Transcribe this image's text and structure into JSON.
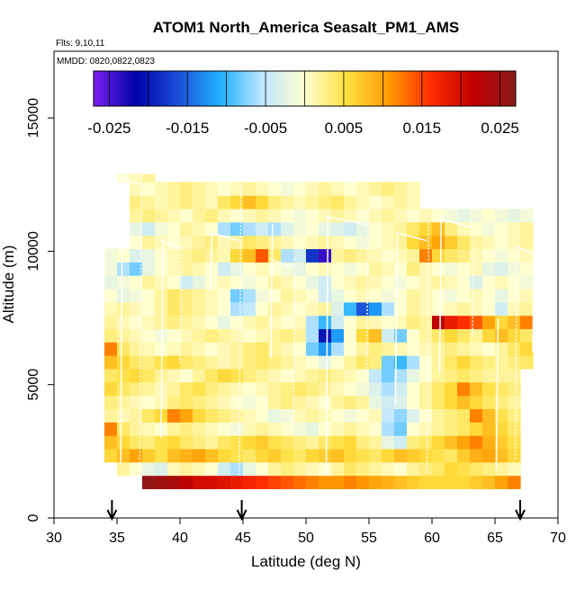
{
  "chart_data": {
    "type": "heatmap",
    "title": "ATOM1 North_America Seasalt_PM1_AMS",
    "flights_label": "Flts: 9,10,11",
    "dates_label": "MMDD: 0820,0822,0823",
    "xlabel": "Latitude (deg N)",
    "ylabel": "Altitude (m)",
    "xlim": [
      30,
      70
    ],
    "ylim": [
      0,
      17500
    ],
    "x_ticks": [
      "30",
      "35",
      "40",
      "45",
      "50",
      "55",
      "60",
      "65",
      "70"
    ],
    "y_ticks": [
      "0",
      "5000",
      "10000",
      "15000"
    ],
    "colorbar": {
      "range": [
        -0.027,
        0.027
      ],
      "tick_labels": [
        "-0.025",
        "-0.015",
        "-0.005",
        "0.005",
        "0.015",
        "0.025"
      ],
      "tick_values": [
        -0.025,
        -0.015,
        -0.005,
        0.005,
        0.015,
        0.025
      ],
      "stops": [
        "#7b1ff0",
        "#0000a8",
        "#1a4fd8",
        "#1fb0ff",
        "#bfe6ff",
        "#ffffd0",
        "#ffe040",
        "#ff9a00",
        "#ff2a00",
        "#c00000",
        "#8b1a1a"
      ]
    },
    "arrow_latitudes": [
      34.6,
      44.9,
      67.0
    ],
    "cells": [
      {
        "lat": [
          37,
          67
        ],
        "alt": [
          1100,
          1600
        ],
        "values": [
          0.026,
          0.025,
          0.024,
          0.022,
          0.02,
          0.02,
          0.019,
          0.018,
          0.017,
          0.016,
          0.015,
          0.014,
          0.013,
          0.012,
          0.011,
          0.011,
          0.012,
          0.011,
          0.01,
          0.009,
          0.008,
          0.007,
          0.006,
          0.006,
          0.006,
          0.006,
          0.007,
          0.008,
          0.01,
          0.012
        ]
      },
      {
        "lat": [
          35,
          67
        ],
        "alt": [
          1600,
          2100
        ],
        "values": [
          0.002,
          0.0,
          -0.002,
          -0.003,
          0.001,
          0.002,
          0.001,
          0.0,
          -0.004,
          -0.006,
          -0.002,
          0.0,
          0.002,
          0.003,
          0.002,
          0.001,
          0.0,
          0.002,
          0.004,
          0.003,
          0.002,
          0.001,
          0.0,
          0.002,
          0.003,
          0.004,
          0.006,
          0.005,
          0.004,
          0.003,
          0.002,
          0.001
        ]
      },
      {
        "lat": [
          34,
          67
        ],
        "alt": [
          2100,
          2600
        ],
        "values": [
          0.006,
          0.008,
          0.01,
          0.007,
          0.005,
          0.008,
          0.009,
          0.01,
          0.008,
          0.006,
          0.005,
          0.004,
          0.006,
          0.007,
          0.005,
          0.004,
          0.006,
          0.007,
          0.008,
          0.006,
          0.005,
          0.004,
          0.006,
          0.008,
          0.007,
          0.006,
          0.005,
          0.004,
          0.007,
          0.009,
          0.01,
          0.008,
          0.006
        ]
      },
      {
        "lat": [
          34,
          67
        ],
        "alt": [
          2600,
          3100
        ],
        "values": [
          0.008,
          0.006,
          0.004,
          0.003,
          0.005,
          0.006,
          0.004,
          0.003,
          0.002,
          0.004,
          0.005,
          0.006,
          0.007,
          0.005,
          0.004,
          0.003,
          0.002,
          0.004,
          0.005,
          0.006,
          0.003,
          0.002,
          -0.002,
          -0.004,
          0.003,
          0.004,
          0.006,
          0.008,
          0.01,
          0.012,
          0.009,
          0.007,
          0.005
        ]
      },
      {
        "lat": [
          34,
          67
        ],
        "alt": [
          3100,
          3600
        ],
        "values": [
          0.012,
          0.004,
          0.002,
          0.001,
          0.0,
          0.002,
          0.003,
          0.002,
          0.001,
          0.0,
          -0.001,
          0.001,
          0.002,
          0.001,
          0.0,
          -0.001,
          -0.002,
          0.0,
          0.001,
          0.002,
          0.001,
          0.0,
          -0.006,
          -0.008,
          0.0,
          0.001,
          0.002,
          0.003,
          0.004,
          0.006,
          0.008,
          0.006,
          0.004
        ]
      },
      {
        "lat": [
          34,
          67
        ],
        "alt": [
          3600,
          4100
        ],
        "values": [
          0.002,
          0.001,
          0.002,
          0.004,
          0.006,
          0.012,
          0.01,
          0.006,
          0.004,
          0.003,
          0.002,
          0.001,
          0.0,
          -0.002,
          -0.001,
          0.001,
          0.002,
          0.001,
          0.0,
          -0.001,
          0.0,
          0.001,
          -0.005,
          -0.007,
          -0.003,
          0.0,
          0.002,
          0.003,
          0.004,
          0.012,
          0.008,
          0.005,
          0.003
        ]
      },
      {
        "lat": [
          34,
          67
        ],
        "alt": [
          4100,
          4600
        ],
        "values": [
          0.003,
          0.002,
          0.001,
          0.0,
          0.001,
          0.003,
          0.004,
          0.003,
          0.002,
          0.001,
          0.0,
          -0.001,
          0.0,
          0.002,
          0.003,
          0.002,
          0.001,
          0.0,
          0.002,
          0.003,
          0.002,
          -0.002,
          -0.004,
          -0.003,
          0.0,
          0.002,
          0.004,
          0.006,
          0.008,
          0.006,
          0.004,
          0.003,
          0.002
        ]
      },
      {
        "lat": [
          34,
          67
        ],
        "alt": [
          4600,
          5100
        ],
        "values": [
          0.006,
          0.004,
          0.003,
          0.002,
          0.001,
          0.002,
          0.004,
          0.005,
          0.003,
          0.002,
          0.001,
          0.0,
          0.001,
          0.002,
          0.003,
          0.004,
          0.003,
          0.002,
          0.001,
          0.0,
          -0.001,
          -0.003,
          -0.006,
          -0.004,
          0.0,
          0.002,
          0.004,
          0.006,
          0.012,
          0.008,
          0.005,
          0.004,
          0.003
        ]
      },
      {
        "lat": [
          34,
          67
        ],
        "alt": [
          5100,
          5600
        ],
        "values": [
          0.004,
          0.005,
          0.006,
          0.004,
          0.002,
          0.001,
          0.0,
          0.002,
          0.004,
          0.006,
          0.005,
          0.003,
          0.002,
          0.001,
          0.0,
          0.001,
          0.002,
          0.003,
          0.002,
          0.001,
          0.0,
          -0.005,
          -0.008,
          -0.006,
          -0.002,
          0.0,
          0.002,
          0.003,
          0.004,
          0.003,
          0.002,
          0.002,
          0.002
        ]
      },
      {
        "lat": [
          34,
          68
        ],
        "alt": [
          5600,
          6100
        ],
        "values": [
          0.008,
          0.006,
          0.004,
          0.003,
          0.005,
          0.006,
          0.004,
          0.003,
          0.002,
          0.001,
          0.002,
          0.003,
          0.004,
          0.003,
          0.002,
          0.001,
          0.0,
          -0.002,
          0.0,
          0.002,
          0.004,
          0.003,
          -0.008,
          -0.01,
          -0.006,
          0.0,
          0.002,
          0.004,
          0.006,
          0.004,
          0.003,
          0.002,
          0.003,
          0.004
        ]
      },
      {
        "lat": [
          34,
          68
        ],
        "alt": [
          6100,
          6600
        ],
        "values": [
          0.012,
          0.004,
          0.002,
          0.001,
          0.0,
          0.001,
          0.002,
          0.001,
          0.0,
          0.001,
          0.002,
          0.003,
          0.004,
          0.002,
          0.001,
          0.0,
          -0.008,
          -0.012,
          -0.006,
          0.0,
          0.002,
          0.003,
          0.002,
          0.001,
          0.0,
          0.001,
          0.002,
          0.003,
          0.002,
          0.001,
          0.0,
          0.002,
          0.004,
          0.006
        ]
      },
      {
        "lat": [
          34,
          68
        ],
        "alt": [
          6600,
          7100
        ],
        "values": [
          0.003,
          0.002,
          0.001,
          0.0,
          -0.001,
          0.0,
          0.001,
          0.002,
          0.003,
          0.002,
          0.001,
          0.0,
          0.001,
          0.002,
          0.003,
          0.002,
          -0.006,
          -0.02,
          -0.012,
          0.0,
          0.006,
          0.008,
          -0.004,
          -0.008,
          0.0,
          0.002,
          0.004,
          0.006,
          0.004,
          0.002,
          0.006,
          0.008,
          0.006,
          0.004
        ]
      },
      {
        "lat": [
          34,
          68
        ],
        "alt": [
          7100,
          7600
        ],
        "values": [
          0.002,
          0.001,
          0.0,
          0.001,
          0.002,
          0.003,
          0.002,
          0.001,
          0.0,
          -0.002,
          0.0,
          0.001,
          0.002,
          0.001,
          0.0,
          0.001,
          -0.006,
          -0.01,
          -0.004,
          0.0,
          0.002,
          0.001,
          0.0,
          0.001,
          0.003,
          0.002,
          0.022,
          0.018,
          0.016,
          0.014,
          0.01,
          0.006,
          0.008,
          0.012
        ]
      },
      {
        "lat": [
          34,
          68
        ],
        "alt": [
          7600,
          8100
        ],
        "values": [
          0.001,
          0.002,
          0.001,
          0.0,
          0.002,
          0.004,
          0.003,
          0.002,
          0.001,
          0.0,
          -0.006,
          -0.005,
          0.0,
          0.002,
          0.001,
          0.0,
          0.001,
          0.002,
          -0.003,
          -0.01,
          -0.016,
          -0.012,
          -0.006,
          0.0,
          0.002,
          0.001,
          0.0,
          0.001,
          0.002,
          0.001,
          0.0,
          -0.004,
          0.001,
          0.002
        ]
      },
      {
        "lat": [
          34,
          68
        ],
        "alt": [
          8100,
          8600
        ],
        "values": [
          0.0,
          -0.002,
          -0.001,
          0.0,
          0.002,
          0.004,
          0.003,
          0.002,
          0.001,
          0.0,
          -0.008,
          -0.006,
          -0.001,
          0.0,
          0.002,
          0.001,
          0.0,
          -0.004,
          -0.002,
          0.0,
          0.001,
          0.0,
          -0.001,
          0.0,
          0.002,
          0.001,
          0.0,
          -0.001,
          0.0,
          0.001,
          0.0,
          -0.002,
          0.0,
          0.001
        ]
      },
      {
        "lat": [
          34,
          68
        ],
        "alt": [
          8600,
          9100
        ],
        "values": [
          -0.002,
          -0.001,
          0.0,
          0.002,
          0.001,
          0.0,
          -0.004,
          -0.002,
          0.0,
          0.001,
          0.0,
          -0.001,
          0.0,
          0.002,
          0.001,
          0.0,
          -0.002,
          -0.004,
          0.0,
          0.001,
          0.002,
          0.001,
          0.0,
          -0.001,
          0.0,
          0.001,
          0.002,
          0.001,
          0.0,
          -0.003,
          0.0,
          0.001,
          0.0,
          -0.001
        ]
      },
      {
        "lat": [
          34,
          68
        ],
        "alt": [
          9100,
          9600
        ],
        "values": [
          -0.001,
          -0.006,
          -0.008,
          -0.002,
          0.0,
          0.001,
          0.002,
          0.001,
          0.0,
          -0.004,
          -0.002,
          0.0,
          0.001,
          0.0,
          -0.001,
          -0.002,
          0.0,
          0.001,
          0.0,
          -0.001,
          0.0,
          0.002,
          0.001,
          0.0,
          0.003,
          0.001,
          0.0,
          -0.001,
          0.0,
          0.001,
          -0.002,
          -0.003,
          -0.001,
          0.0
        ]
      },
      {
        "lat": [
          34,
          68
        ],
        "alt": [
          9600,
          10100
        ],
        "values": [
          -0.001,
          0.0,
          -0.003,
          -0.002,
          0.0,
          0.001,
          0.002,
          0.003,
          0.002,
          0.001,
          0.006,
          0.008,
          0.014,
          0.004,
          -0.006,
          -0.004,
          -0.018,
          -0.024,
          0.002,
          0.003,
          0.002,
          0.001,
          0.0,
          0.001,
          0.002,
          0.012,
          0.006,
          0.004,
          0.003,
          0.001,
          0.0,
          -0.001,
          0.0,
          0.001
        ]
      },
      {
        "lat": [
          36,
          68
        ],
        "alt": [
          10100,
          10600
        ],
        "values": [
          0.0,
          0.002,
          0.001,
          0.0,
          0.001,
          0.002,
          0.003,
          0.001,
          0.002,
          0.004,
          0.003,
          0.002,
          0.001,
          0.0,
          0.001,
          0.002,
          0.001,
          0.0,
          -0.001,
          0.0,
          0.001,
          0.002,
          0.006,
          0.008,
          0.01,
          0.007,
          0.004,
          0.002,
          0.001,
          0.0,
          0.001,
          0.002
        ]
      },
      {
        "lat": [
          36,
          68
        ],
        "alt": [
          10600,
          11100
        ],
        "values": [
          -0.002,
          -0.004,
          -0.001,
          0.0,
          0.002,
          0.001,
          0.0,
          -0.006,
          -0.008,
          -0.006,
          -0.004,
          -0.006,
          -0.003,
          -0.001,
          0.0,
          -0.002,
          -0.003,
          -0.004,
          -0.002,
          0.0,
          0.001,
          0.002,
          0.004,
          0.006,
          0.008,
          0.003,
          0.001,
          0.0,
          -0.001,
          0.0,
          0.001,
          0.002
        ]
      },
      {
        "lat": [
          36,
          68
        ],
        "alt": [
          11100,
          11600
        ],
        "values": [
          0.002,
          0.003,
          0.002,
          0.001,
          0.0,
          0.002,
          0.003,
          0.001,
          0.0,
          0.001,
          0.002,
          0.001,
          0.0,
          -0.001,
          0.0,
          0.001,
          0.002,
          0.001,
          0.0,
          0.001,
          0.002,
          0.001,
          0.0,
          0.001,
          0.0,
          -0.001,
          -0.002,
          -0.001,
          0.0,
          -0.001,
          -0.002,
          -0.001
        ]
      },
      {
        "lat": [
          36,
          59
        ],
        "alt": [
          11600,
          12100
        ],
        "values": [
          0.003,
          0.002,
          0.001,
          0.002,
          0.003,
          0.002,
          0.001,
          0.004,
          0.006,
          0.008,
          0.006,
          0.003,
          0.002,
          0.001,
          0.002,
          0.003,
          0.004,
          0.002,
          0.001,
          0.0,
          0.001,
          0.002,
          0.001
        ]
      },
      {
        "lat": [
          36,
          59
        ],
        "alt": [
          12100,
          12600
        ],
        "values": [
          0.001,
          0.0,
          0.001,
          0.002,
          0.003,
          0.002,
          0.001,
          0.0,
          0.001,
          0.002,
          0.001,
          0.0,
          -0.001,
          0.0,
          0.001,
          0.002,
          0.001,
          0.0,
          0.001,
          0.002,
          0.003,
          0.002,
          0.001
        ]
      },
      {
        "lat": [
          35,
          38
        ],
        "alt": [
          12600,
          12900
        ],
        "values": [
          0.0,
          0.001,
          0.002
        ]
      }
    ]
  }
}
